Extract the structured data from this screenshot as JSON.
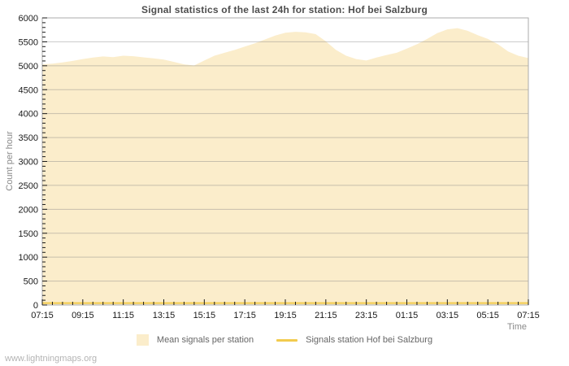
{
  "title": "Signal statistics of the last 24h for station: Hof bei Salzburg",
  "watermark": "www.lightningmaps.org",
  "chart_data": {
    "type": "area",
    "title": "Signal statistics of the last 24h for station: Hof bei Salzburg",
    "xlabel": "Time",
    "ylabel": "Count per hour",
    "ylim": [
      0,
      6000
    ],
    "y_major_step": 500,
    "y_minor_step": 100,
    "x_range_hours": [
      0,
      24
    ],
    "x_major_step_hours": 2,
    "x_minor_step_hours": 0.5,
    "x_tick_labels": [
      "07:15",
      "09:15",
      "11:15",
      "13:15",
      "15:15",
      "17:15",
      "19:15",
      "21:15",
      "23:15",
      "01:15",
      "03:15",
      "05:15",
      "07:15"
    ],
    "grid": true,
    "legend_position": "bottom",
    "series": [
      {
        "name": "Mean signals per station",
        "type": "area",
        "color": "#fbedcb",
        "x_hours": [
          0,
          0.5,
          1,
          1.5,
          2,
          2.5,
          3,
          3.5,
          4,
          4.5,
          5,
          5.5,
          6,
          6.5,
          7,
          7.5,
          8,
          8.5,
          9,
          9.5,
          10,
          10.5,
          11,
          11.5,
          12,
          12.5,
          13,
          13.5,
          14,
          14.5,
          15,
          15.5,
          16,
          16.5,
          17,
          17.5,
          18,
          18.5,
          19,
          19.5,
          20,
          20.5,
          21,
          21.5,
          22,
          22.5,
          23,
          23.5,
          24
        ],
        "values": [
          5030,
          5045,
          5070,
          5100,
          5140,
          5170,
          5195,
          5180,
          5210,
          5200,
          5175,
          5155,
          5130,
          5080,
          5030,
          5005,
          5110,
          5210,
          5270,
          5330,
          5400,
          5470,
          5550,
          5630,
          5690,
          5710,
          5700,
          5660,
          5510,
          5330,
          5210,
          5140,
          5110,
          5170,
          5225,
          5270,
          5360,
          5450,
          5560,
          5680,
          5760,
          5785,
          5730,
          5640,
          5560,
          5450,
          5300,
          5210,
          5160
        ]
      },
      {
        "name": "Signals station Hof bei Salzburg",
        "type": "line",
        "color": "#f2cb4e",
        "x_hours": [
          0,
          24
        ],
        "values": [
          40,
          40
        ]
      }
    ]
  }
}
